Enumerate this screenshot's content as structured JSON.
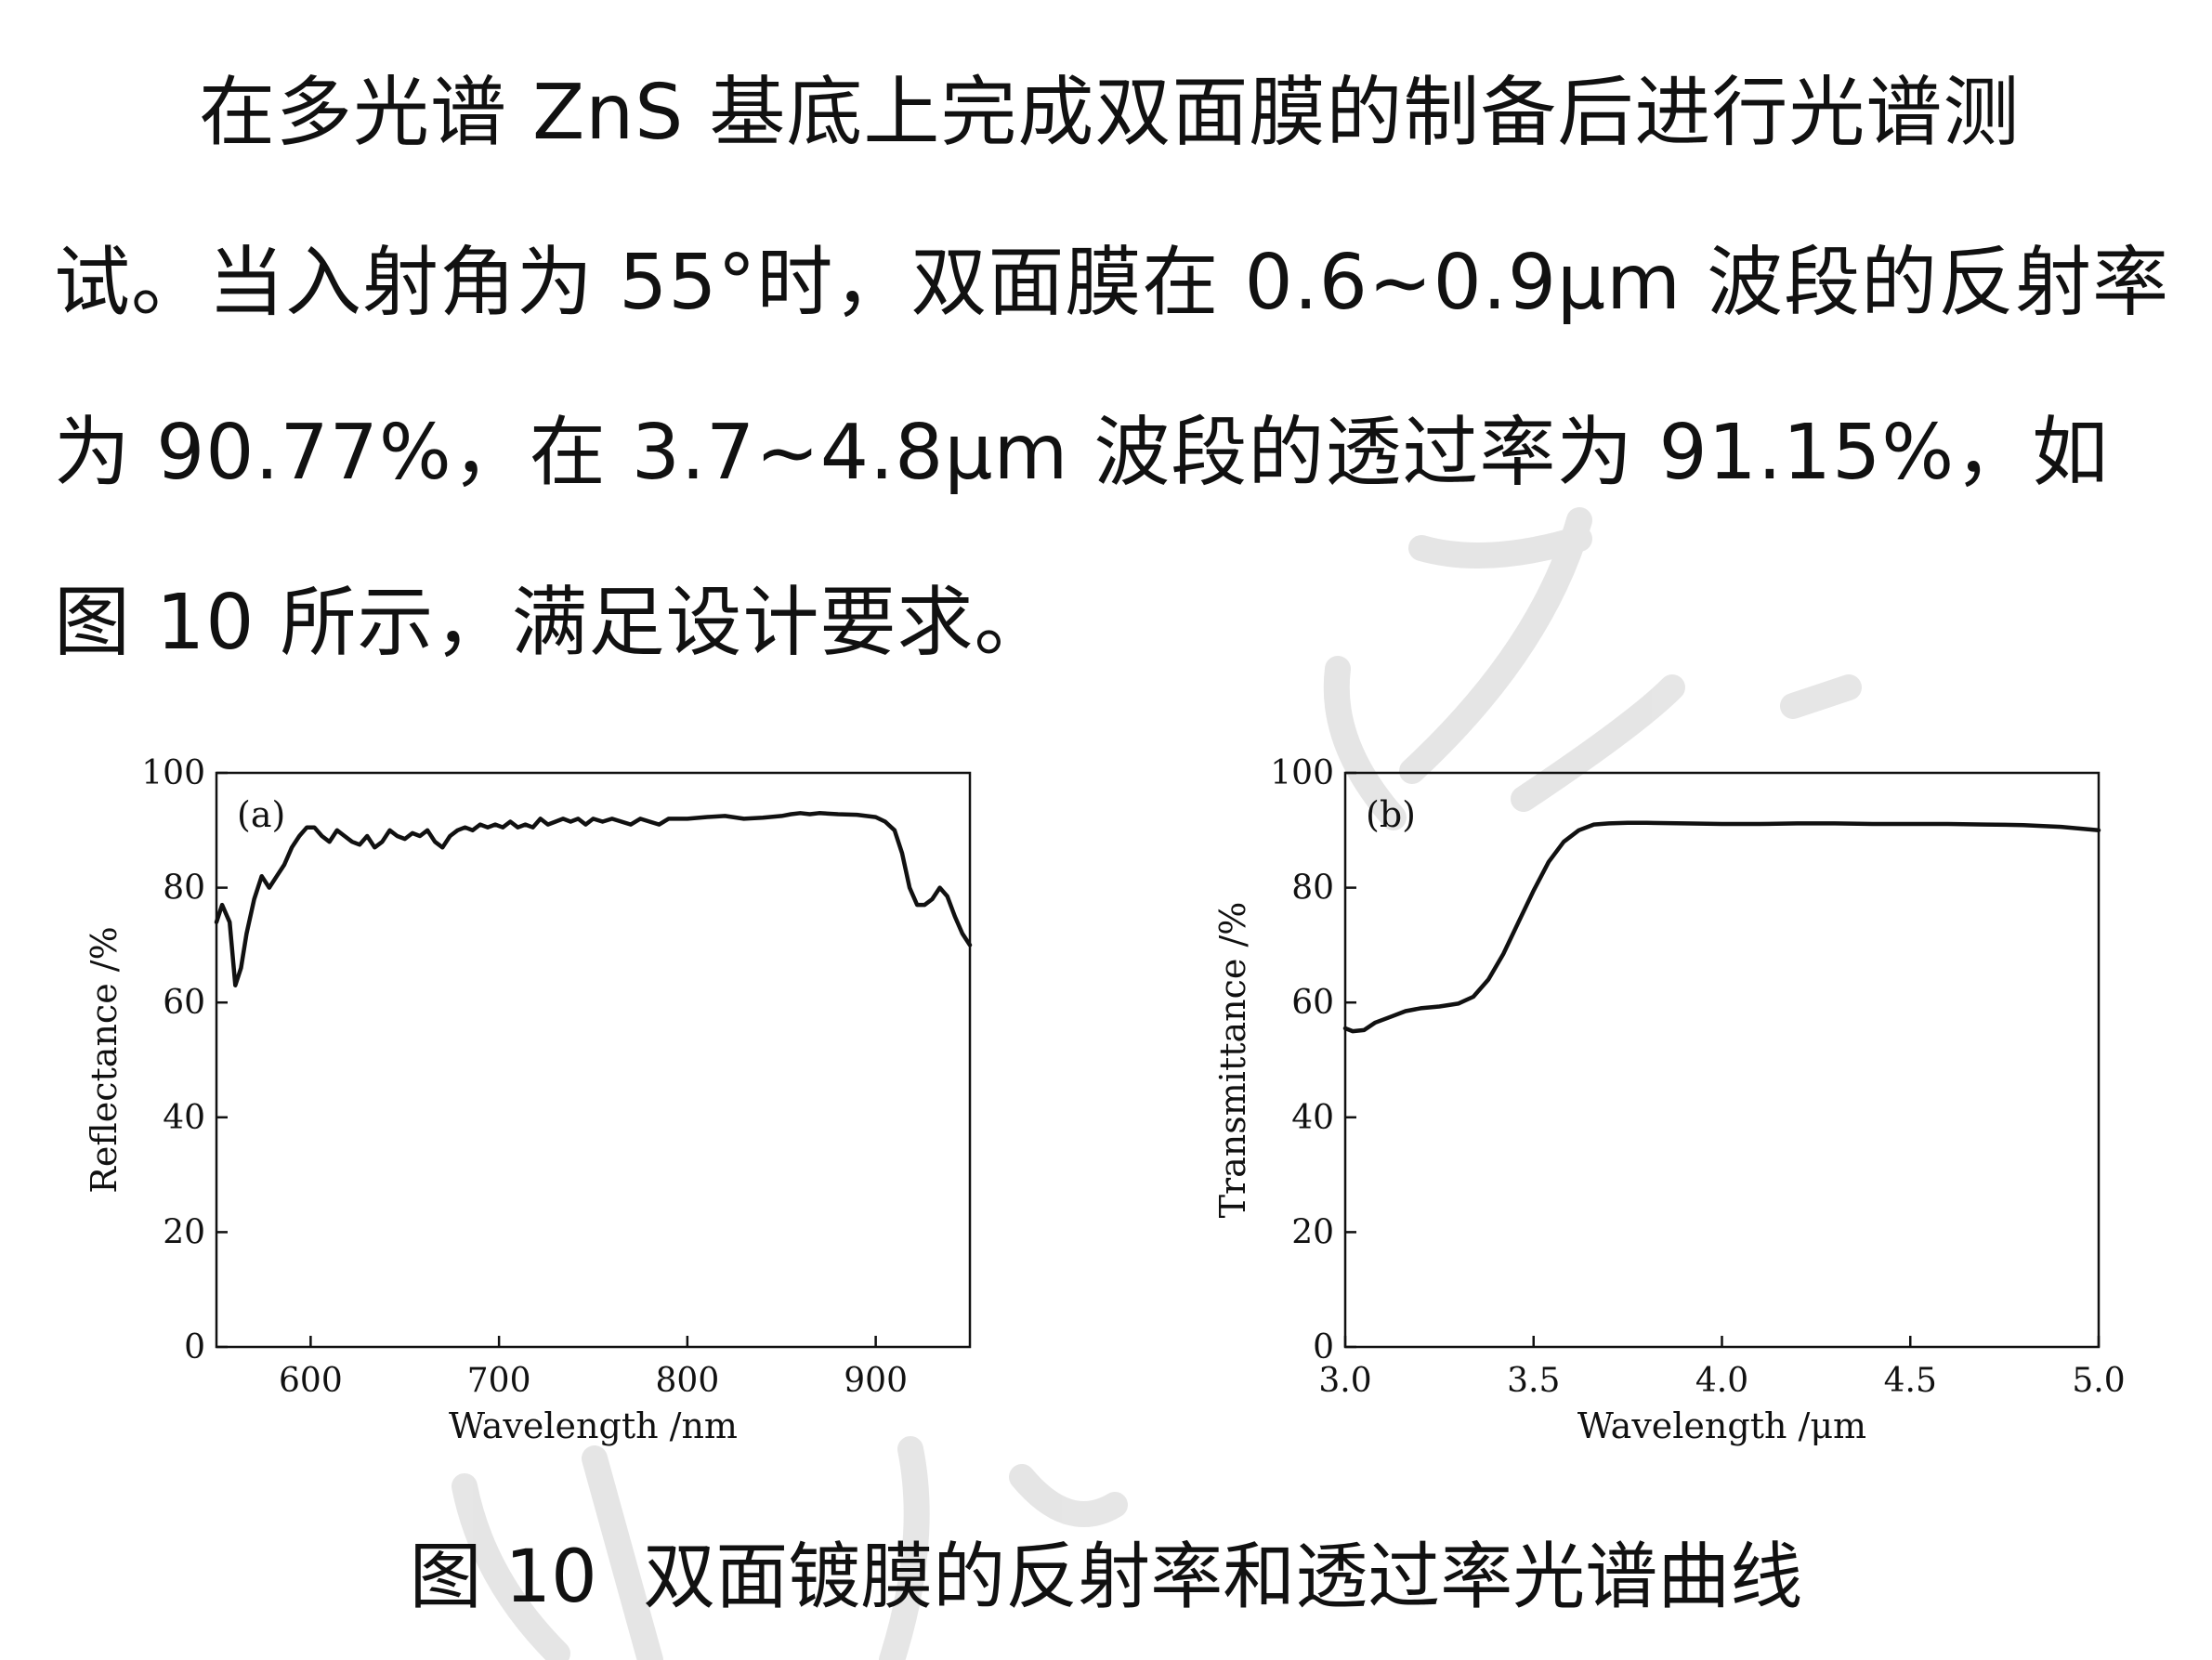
{
  "paragraph": "在多光谱 ZnS 基底上完成双面膜的制备后进行光谱测试。当入射角为 55°时，双面膜在 0.6~0.9μm 波段的反射率为 90.77%，在 3.7~4.8μm 波段的透过率为 91.15%，如图 10 所示，满足设计要求。",
  "caption": "图 10  双面镀膜的反射率和透过率光谱曲线",
  "colors": {
    "text": "#111111",
    "line": "#111111",
    "watermark": "#dddddd"
  },
  "chart_data": [
    {
      "type": "line",
      "panel_label": "(a)",
      "xlabel": "Wavelength /nm",
      "ylabel": "Reflectance /%",
      "xlim": [
        550,
        950
      ],
      "ylim": [
        0,
        100
      ],
      "xticks": [
        600,
        700,
        800,
        900
      ],
      "yticks": [
        0,
        20,
        40,
        60,
        80,
        100
      ],
      "grid": false,
      "x": [
        550,
        553,
        557,
        560,
        563,
        566,
        570,
        574,
        578,
        582,
        586,
        590,
        594,
        598,
        602,
        606,
        610,
        614,
        618,
        622,
        626,
        630,
        634,
        638,
        642,
        646,
        650,
        654,
        658,
        662,
        666,
        670,
        674,
        678,
        682,
        686,
        690,
        694,
        698,
        702,
        706,
        710,
        714,
        718,
        722,
        726,
        730,
        734,
        738,
        742,
        746,
        750,
        755,
        760,
        765,
        770,
        775,
        780,
        785,
        790,
        800,
        810,
        820,
        830,
        840,
        850,
        855,
        860,
        865,
        870,
        880,
        890,
        900,
        905,
        910,
        914,
        918,
        922,
        926,
        930,
        934,
        938,
        942,
        946,
        950
      ],
      "y": [
        74,
        77,
        74,
        63,
        66,
        72,
        78,
        82,
        80,
        82,
        84,
        87,
        89,
        90.5,
        90.5,
        89,
        88,
        90,
        89,
        88,
        87.5,
        89,
        87,
        88,
        90,
        89,
        88.5,
        89.5,
        89,
        90,
        88,
        87,
        89,
        90,
        90.5,
        90,
        91,
        90.5,
        91,
        90.5,
        91.5,
        90.5,
        91,
        90.5,
        92,
        91,
        91.5,
        92,
        91.5,
        92,
        91,
        92,
        91.5,
        92,
        91.5,
        91,
        92,
        91.5,
        91,
        92,
        92,
        92.3,
        92.5,
        92,
        92.2,
        92.5,
        92.8,
        93,
        92.8,
        93,
        92.8,
        92.7,
        92.3,
        91.5,
        90,
        86,
        80,
        77,
        77,
        78,
        80,
        78.5,
        75,
        72,
        70
      ]
    },
    {
      "type": "line",
      "panel_label": "(b)",
      "xlabel": "Wavelength /μm",
      "ylabel": "Transmittance /%",
      "xlim": [
        3.0,
        5.0
      ],
      "ylim": [
        0,
        100
      ],
      "xticks": [
        "3.0",
        "3.5",
        "4.0",
        "4.5",
        "5.0"
      ],
      "yticks": [
        0,
        20,
        40,
        60,
        80,
        100
      ],
      "grid": false,
      "x": [
        3.0,
        3.02,
        3.05,
        3.08,
        3.12,
        3.16,
        3.2,
        3.25,
        3.3,
        3.34,
        3.38,
        3.42,
        3.46,
        3.5,
        3.54,
        3.58,
        3.62,
        3.66,
        3.7,
        3.75,
        3.8,
        3.9,
        4.0,
        4.1,
        4.2,
        4.3,
        4.4,
        4.5,
        4.6,
        4.7,
        4.8,
        4.9,
        5.0
      ],
      "y": [
        55.5,
        55.0,
        55.2,
        56.5,
        57.5,
        58.5,
        59.0,
        59.3,
        59.8,
        61,
        64,
        68.5,
        74,
        79.5,
        84.5,
        88,
        90,
        91,
        91.2,
        91.3,
        91.3,
        91.2,
        91.1,
        91.1,
        91.2,
        91.2,
        91.1,
        91.1,
        91.1,
        91.0,
        90.9,
        90.6,
        90.0
      ]
    }
  ]
}
